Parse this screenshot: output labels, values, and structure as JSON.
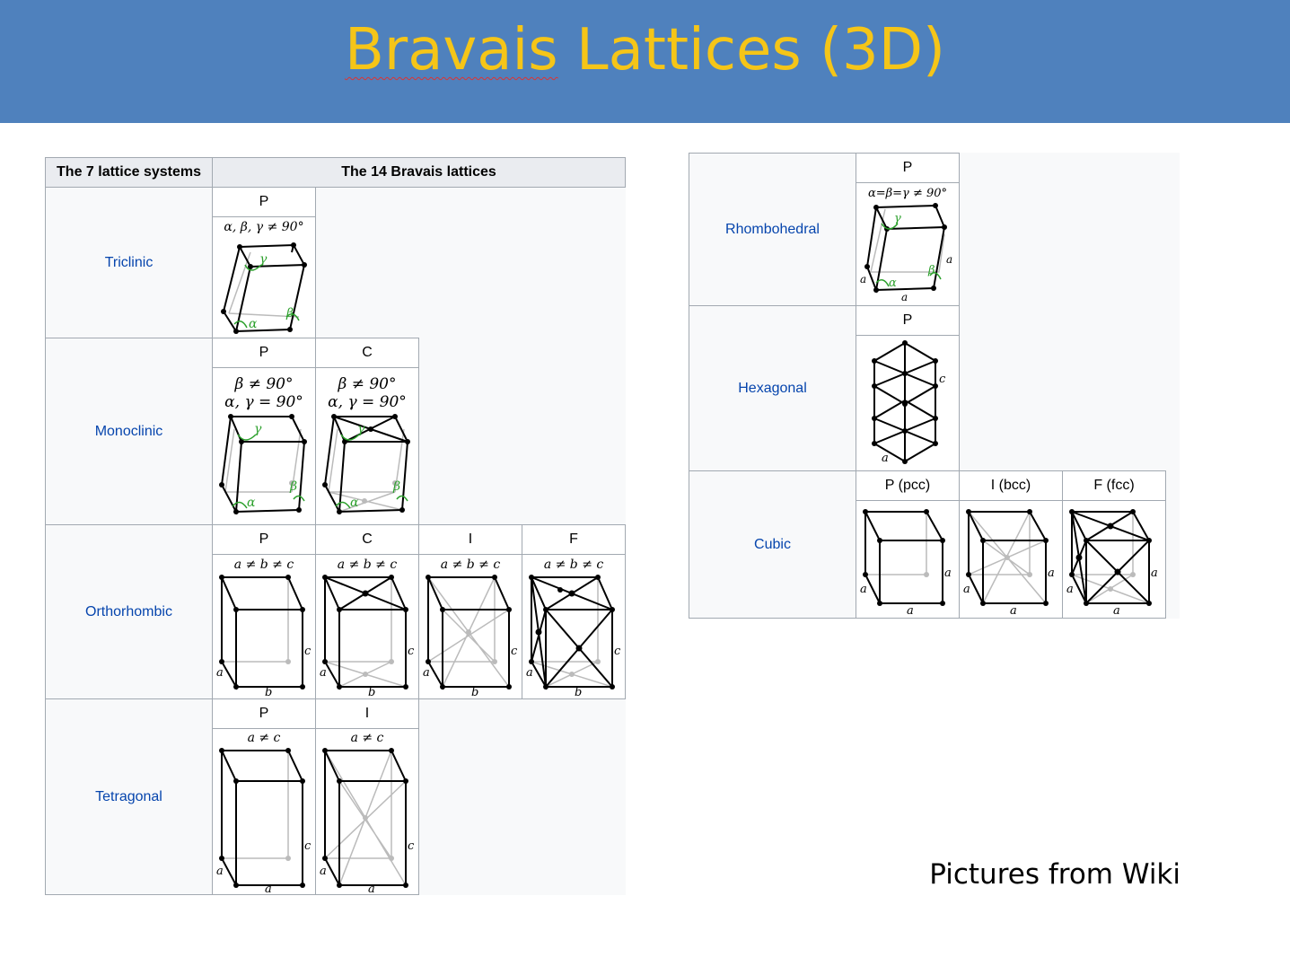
{
  "slide": {
    "title_underlined": "Bravais",
    "title_rest": " Lattices (3D)",
    "footer": "Pictures from Wiki"
  },
  "left_table": {
    "header_systems": "The 7 lattice systems",
    "header_lattices": "The 14 Bravais lattices",
    "rows": [
      {
        "system": "Triclinic",
        "cells": [
          {
            "label": "P",
            "formula": "α, β, γ ≠ 90°"
          }
        ]
      },
      {
        "system": "Monoclinic",
        "cells": [
          {
            "label": "P",
            "formula": "β ≠ 90°",
            "formula2": "α, γ = 90°"
          },
          {
            "label": "C",
            "formula": "β ≠ 90°",
            "formula2": "α, γ = 90°"
          }
        ]
      },
      {
        "system": "Orthorhombic",
        "cells": [
          {
            "label": "P",
            "formula": "a ≠ b ≠ c"
          },
          {
            "label": "C",
            "formula": "a ≠ b ≠ c"
          },
          {
            "label": "I",
            "formula": "a ≠ b ≠ c"
          },
          {
            "label": "F",
            "formula": "a ≠ b ≠ c"
          }
        ]
      },
      {
        "system": "Tetragonal",
        "cells": [
          {
            "label": "P",
            "formula": "a ≠ c"
          },
          {
            "label": "I",
            "formula": "a ≠ c"
          }
        ]
      }
    ]
  },
  "right_table": {
    "rows": [
      {
        "system": "Rhombohedral",
        "cells": [
          {
            "label": "P",
            "formula": "α=β=γ ≠ 90°"
          }
        ]
      },
      {
        "system": "Hexagonal",
        "cells": [
          {
            "label": "P"
          }
        ]
      },
      {
        "system": "Cubic",
        "cells": [
          {
            "label": "P (pcc)"
          },
          {
            "label": "I (bcc)"
          },
          {
            "label": "F (fcc)"
          }
        ]
      }
    ]
  },
  "axis_letters": {
    "a": "a",
    "b": "b",
    "c": "c",
    "alpha": "α",
    "beta": "β",
    "gamma": "γ"
  },
  "colors": {
    "banner": "#4f81bd",
    "title": "#f5c518",
    "link": "#0645ad",
    "angle": "#2ca02c"
  }
}
